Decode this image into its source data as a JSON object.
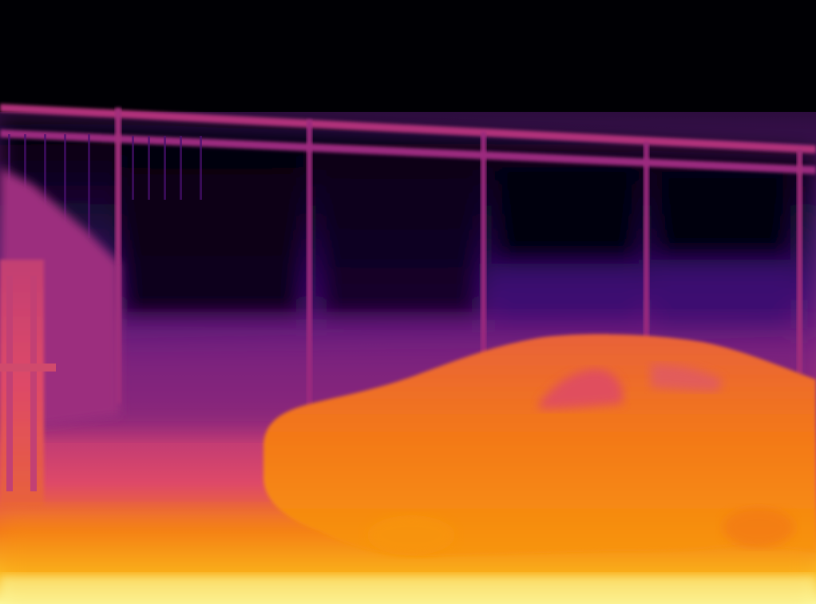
{
  "image": {
    "kind": "depth-map visualization",
    "colormap": "inferno",
    "palette": {
      "far": "#000004",
      "deep_purple": "#2a0b4e",
      "purple": "#5b1a7a",
      "magenta": "#8c2981",
      "red_magenta": "#b63679",
      "red": "#de4968",
      "orange": "#f37819",
      "orange_light": "#f8950d",
      "yellow": "#fbbd22",
      "near": "#fcffa4"
    },
    "subjects": [
      "sky-region",
      "fence-railing",
      "building-wall",
      "left-structure",
      "car",
      "ground"
    ]
  }
}
